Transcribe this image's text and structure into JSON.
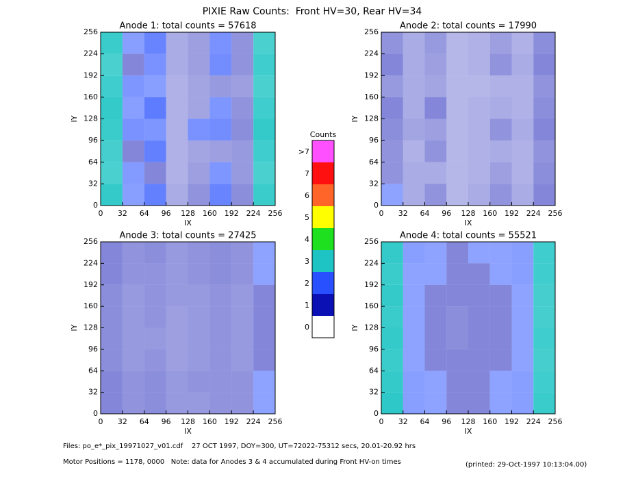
{
  "title": "PIXIE Raw Counts:  Front HV=30, Rear HV=34",
  "chart_data": [
    {
      "type": "heatmap",
      "title": "Anode 1: total counts = 57618",
      "x_label": "IX",
      "y_label": "IY",
      "xlim": [
        0,
        256
      ],
      "ylim": [
        0,
        256
      ],
      "xticks": [
        0,
        32,
        64,
        96,
        128,
        160,
        192,
        224,
        256
      ],
      "yticks": [
        0,
        32,
        64,
        96,
        128,
        160,
        192,
        224,
        256
      ],
      "values": [
        [
          2.5,
          1.2,
          1.8,
          0.4,
          0.6,
          1.5,
          0.8,
          2.2
        ],
        [
          2.2,
          1.0,
          1.5,
          0.4,
          0.6,
          1.6,
          0.8,
          2.4
        ],
        [
          2.4,
          1.4,
          1.2,
          0.3,
          0.5,
          0.7,
          0.6,
          2.2
        ],
        [
          2.6,
          1.2,
          2.0,
          0.3,
          0.5,
          1.4,
          0.8,
          2.4
        ],
        [
          2.5,
          1.5,
          1.4,
          0.3,
          1.5,
          1.6,
          0.9,
          2.6
        ],
        [
          2.3,
          1.0,
          1.9,
          0.3,
          0.5,
          0.6,
          0.7,
          2.4
        ],
        [
          2.2,
          1.3,
          1.0,
          0.3,
          0.6,
          1.4,
          0.7,
          2.2
        ],
        [
          2.6,
          1.2,
          1.9,
          0.4,
          0.8,
          1.8,
          0.9,
          2.5
        ]
      ]
    },
    {
      "type": "heatmap",
      "title": "Anode 2: total counts = 17990",
      "x_label": "IX",
      "y_label": "IY",
      "xlim": [
        0,
        256
      ],
      "ylim": [
        0,
        256
      ],
      "xticks": [
        0,
        32,
        64,
        96,
        128,
        160,
        192,
        224,
        256
      ],
      "yticks": [
        0,
        32,
        64,
        96,
        128,
        160,
        192,
        224,
        256
      ],
      "values": [
        [
          0.8,
          0.4,
          0.7,
          0.2,
          0.3,
          0.6,
          0.3,
          0.9
        ],
        [
          1.0,
          0.4,
          0.6,
          0.2,
          0.3,
          0.8,
          0.4,
          1.0
        ],
        [
          0.7,
          0.4,
          0.5,
          0.2,
          0.2,
          0.3,
          0.3,
          0.8
        ],
        [
          1.0,
          0.4,
          1.0,
          0.2,
          0.3,
          0.4,
          0.3,
          0.9
        ],
        [
          0.9,
          0.5,
          0.6,
          0.2,
          0.3,
          0.8,
          0.4,
          1.0
        ],
        [
          0.8,
          0.3,
          0.8,
          0.2,
          0.3,
          0.4,
          0.3,
          0.8
        ],
        [
          0.8,
          0.4,
          0.4,
          0.2,
          0.3,
          0.6,
          0.3,
          0.9
        ],
        [
          1.1,
          0.4,
          0.8,
          0.2,
          0.4,
          0.8,
          0.4,
          1.0
        ]
      ]
    },
    {
      "type": "heatmap",
      "title": "Anode 3: total counts = 27425",
      "x_label": "IX",
      "y_label": "IY",
      "xlim": [
        0,
        256
      ],
      "ylim": [
        0,
        256
      ],
      "xticks": [
        0,
        32,
        64,
        96,
        128,
        160,
        192,
        224,
        256
      ],
      "yticks": [
        0,
        32,
        64,
        96,
        128,
        160,
        192,
        224,
        256
      ],
      "values": [
        [
          1.0,
          0.8,
          0.9,
          0.7,
          0.8,
          0.9,
          0.8,
          1.1
        ],
        [
          1.0,
          0.8,
          0.8,
          0.7,
          0.8,
          0.9,
          0.8,
          1.1
        ],
        [
          0.9,
          0.7,
          0.8,
          0.7,
          0.7,
          0.8,
          0.7,
          1.0
        ],
        [
          0.9,
          0.7,
          0.8,
          0.6,
          0.7,
          0.8,
          0.7,
          1.0
        ],
        [
          0.9,
          0.7,
          0.7,
          0.6,
          0.7,
          0.8,
          0.7,
          1.0
        ],
        [
          0.9,
          0.7,
          0.8,
          0.6,
          0.7,
          0.8,
          0.7,
          1.0
        ],
        [
          1.0,
          0.8,
          0.9,
          0.7,
          0.8,
          0.8,
          0.8,
          1.1
        ],
        [
          1.0,
          0.8,
          0.9,
          0.7,
          0.7,
          0.8,
          0.8,
          1.1
        ]
      ]
    },
    {
      "type": "heatmap",
      "title": "Anode 4: total counts = 55521",
      "x_label": "IX",
      "y_label": "IY",
      "xlim": [
        0,
        256
      ],
      "ylim": [
        0,
        256
      ],
      "xticks": [
        0,
        32,
        64,
        96,
        128,
        160,
        192,
        224,
        256
      ],
      "yticks": [
        0,
        32,
        64,
        96,
        128,
        160,
        192,
        224,
        256
      ],
      "values": [
        [
          2.6,
          1.2,
          1.1,
          1.0,
          1.1,
          1.1,
          1.2,
          2.4
        ],
        [
          2.5,
          1.1,
          1.1,
          1.0,
          1.0,
          1.1,
          1.2,
          2.4
        ],
        [
          2.6,
          1.1,
          1.0,
          1.0,
          1.0,
          1.0,
          1.1,
          2.3
        ],
        [
          2.5,
          1.1,
          1.0,
          0.9,
          1.0,
          1.0,
          1.1,
          2.3
        ],
        [
          2.6,
          1.1,
          1.0,
          0.9,
          1.0,
          1.0,
          1.1,
          2.4
        ],
        [
          2.5,
          1.1,
          1.0,
          1.0,
          1.0,
          1.0,
          1.1,
          2.3
        ],
        [
          2.6,
          1.2,
          1.1,
          1.0,
          1.0,
          1.1,
          1.2,
          2.4
        ],
        [
          2.7,
          1.2,
          1.1,
          1.0,
          1.0,
          1.1,
          1.2,
          2.5
        ]
      ]
    }
  ],
  "colorbar": {
    "title": "Counts",
    "labels": [
      "0",
      "1",
      "2",
      "3",
      "4",
      "5",
      "6",
      "7",
      ">7"
    ],
    "colors": [
      "#ffffff",
      "#0a10b4",
      "#2850ff",
      "#1ec4c4",
      "#1ee01e",
      "#ffff00",
      "#ff6428",
      "#ff1010",
      "#ff50ff"
    ]
  },
  "footer": {
    "files": "Files: po_e*_pix_19971027_v01.cdf    27 OCT 1997, DOY=300, UT=72022-75312 secs, 20.01-20.92 hrs",
    "motor": "Motor Positions = 1178, 0000   Note: data for Anodes 3 & 4 accumulated during Front HV-on times",
    "printed": "(printed: 29-Oct-1997 10:13:04.00)"
  }
}
